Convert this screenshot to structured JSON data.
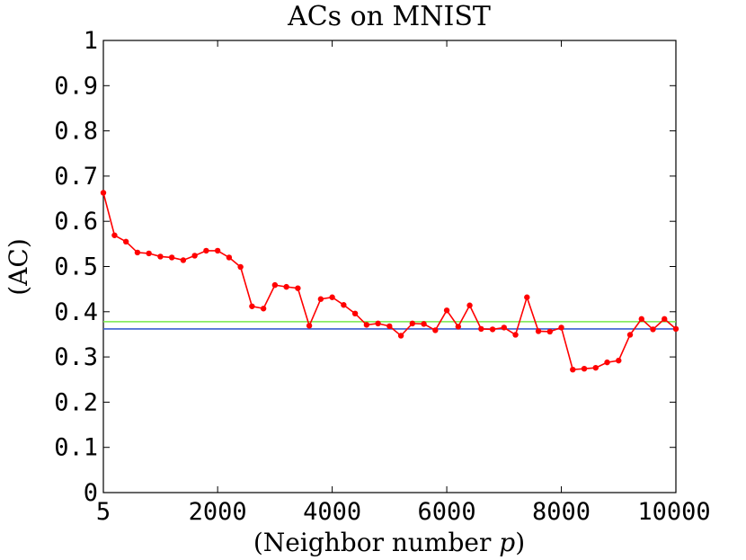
{
  "chart_data": {
    "type": "line",
    "title": "ACs on MNIST",
    "xlabel": "(Neighbor number p)",
    "xlabel_parts": {
      "prefix": "(Neighbor number ",
      "var": "p",
      "suffix": ")"
    },
    "ylabel": "(AC)",
    "xlim": [
      5,
      10000
    ],
    "ylim": [
      0,
      1
    ],
    "grid": false,
    "x_ticks": [
      5,
      2000,
      4000,
      6000,
      8000,
      10000
    ],
    "x_tick_labels": [
      "5",
      "2000",
      "4000",
      "6000",
      "8000",
      "10000"
    ],
    "y_ticks": [
      0,
      0.1,
      0.2,
      0.3,
      0.4,
      0.5,
      0.6,
      0.7,
      0.8,
      0.9,
      1
    ],
    "y_tick_labels": [
      "0",
      "0.1",
      "0.2",
      "0.3",
      "0.4",
      "0.5",
      "0.6",
      "0.7",
      "0.8",
      "0.9",
      "1"
    ],
    "series": [
      {
        "color": "#ff0000",
        "marker": "circle",
        "x": [
          5,
          200,
          400,
          600,
          800,
          1000,
          1200,
          1400,
          1600,
          1800,
          2000,
          2200,
          2400,
          2600,
          2800,
          3000,
          3200,
          3400,
          3600,
          3800,
          4000,
          4200,
          4400,
          4600,
          4800,
          5000,
          5200,
          5400,
          5600,
          5800,
          6000,
          6200,
          6400,
          6600,
          6800,
          7000,
          7200,
          7400,
          7600,
          7800,
          8000,
          8200,
          8400,
          8600,
          8800,
          9000,
          9200,
          9400,
          9600,
          9800,
          10000
        ],
        "y": [
          0.663,
          0.569,
          0.555,
          0.531,
          0.529,
          0.522,
          0.52,
          0.514,
          0.524,
          0.535,
          0.535,
          0.52,
          0.499,
          0.412,
          0.407,
          0.459,
          0.455,
          0.452,
          0.369,
          0.428,
          0.432,
          0.415,
          0.396,
          0.371,
          0.374,
          0.368,
          0.347,
          0.374,
          0.373,
          0.359,
          0.403,
          0.367,
          0.414,
          0.362,
          0.361,
          0.365,
          0.349,
          0.432,
          0.357,
          0.356,
          0.365,
          0.272,
          0.274,
          0.276,
          0.288,
          0.292,
          0.349,
          0.384,
          0.361,
          0.384,
          0.362
        ]
      },
      {
        "color": "#76e84a",
        "marker": "none",
        "x": [
          5,
          10000
        ],
        "y": [
          0.378,
          0.378
        ]
      },
      {
        "color": "#3a5fd0",
        "marker": "none",
        "x": [
          5,
          10000
        ],
        "y": [
          0.362,
          0.362
        ]
      }
    ]
  }
}
